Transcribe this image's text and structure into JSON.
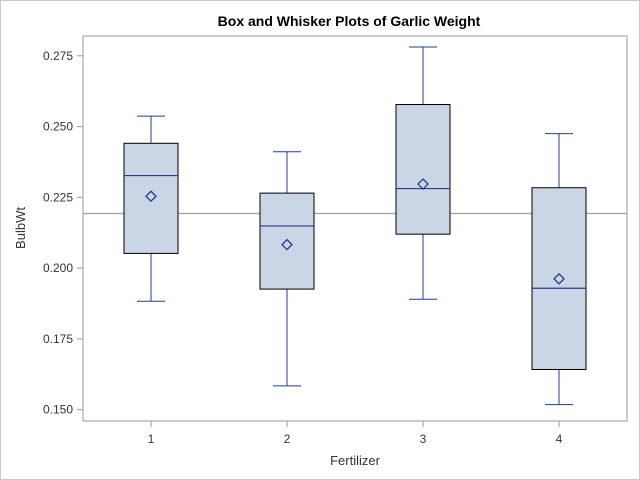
{
  "chart_data": {
    "type": "box",
    "title": "Box and Whisker Plots of Garlic Weight",
    "xlabel": "Fertilizer",
    "ylabel": "BulbWt",
    "categories": [
      "1",
      "2",
      "3",
      "4"
    ],
    "ylim": [
      0.146,
      0.282
    ],
    "yticks": [
      0.15,
      0.175,
      0.2,
      0.225,
      0.25,
      0.275
    ],
    "ytick_labels": [
      "0.150",
      "0.175",
      "0.200",
      "0.225",
      "0.250",
      "0.275"
    ],
    "reference_line": 0.2193,
    "boxes": [
      {
        "category": "1",
        "min": 0.1883,
        "q1": 0.2052,
        "median": 0.2327,
        "q3": 0.2441,
        "max": 0.2537,
        "mean": 0.2254
      },
      {
        "category": "2",
        "min": 0.1584,
        "q1": 0.1926,
        "median": 0.2149,
        "q3": 0.2265,
        "max": 0.2411,
        "mean": 0.2083
      },
      {
        "category": "3",
        "min": 0.189,
        "q1": 0.212,
        "median": 0.2281,
        "q3": 0.2578,
        "max": 0.2781,
        "mean": 0.2297
      },
      {
        "category": "4",
        "min": 0.1518,
        "q1": 0.1642,
        "median": 0.1929,
        "q3": 0.2284,
        "max": 0.2475,
        "mean": 0.1962
      }
    ],
    "colors": {
      "box_fill": "#cad5e5",
      "box_edge": "#000000",
      "whisker": "#1f3f8f",
      "median": "#1f3f8f",
      "mean_marker": "#1f3f8f",
      "reference_line": "#a0a0a0",
      "axis": "#9a9a9a"
    }
  }
}
